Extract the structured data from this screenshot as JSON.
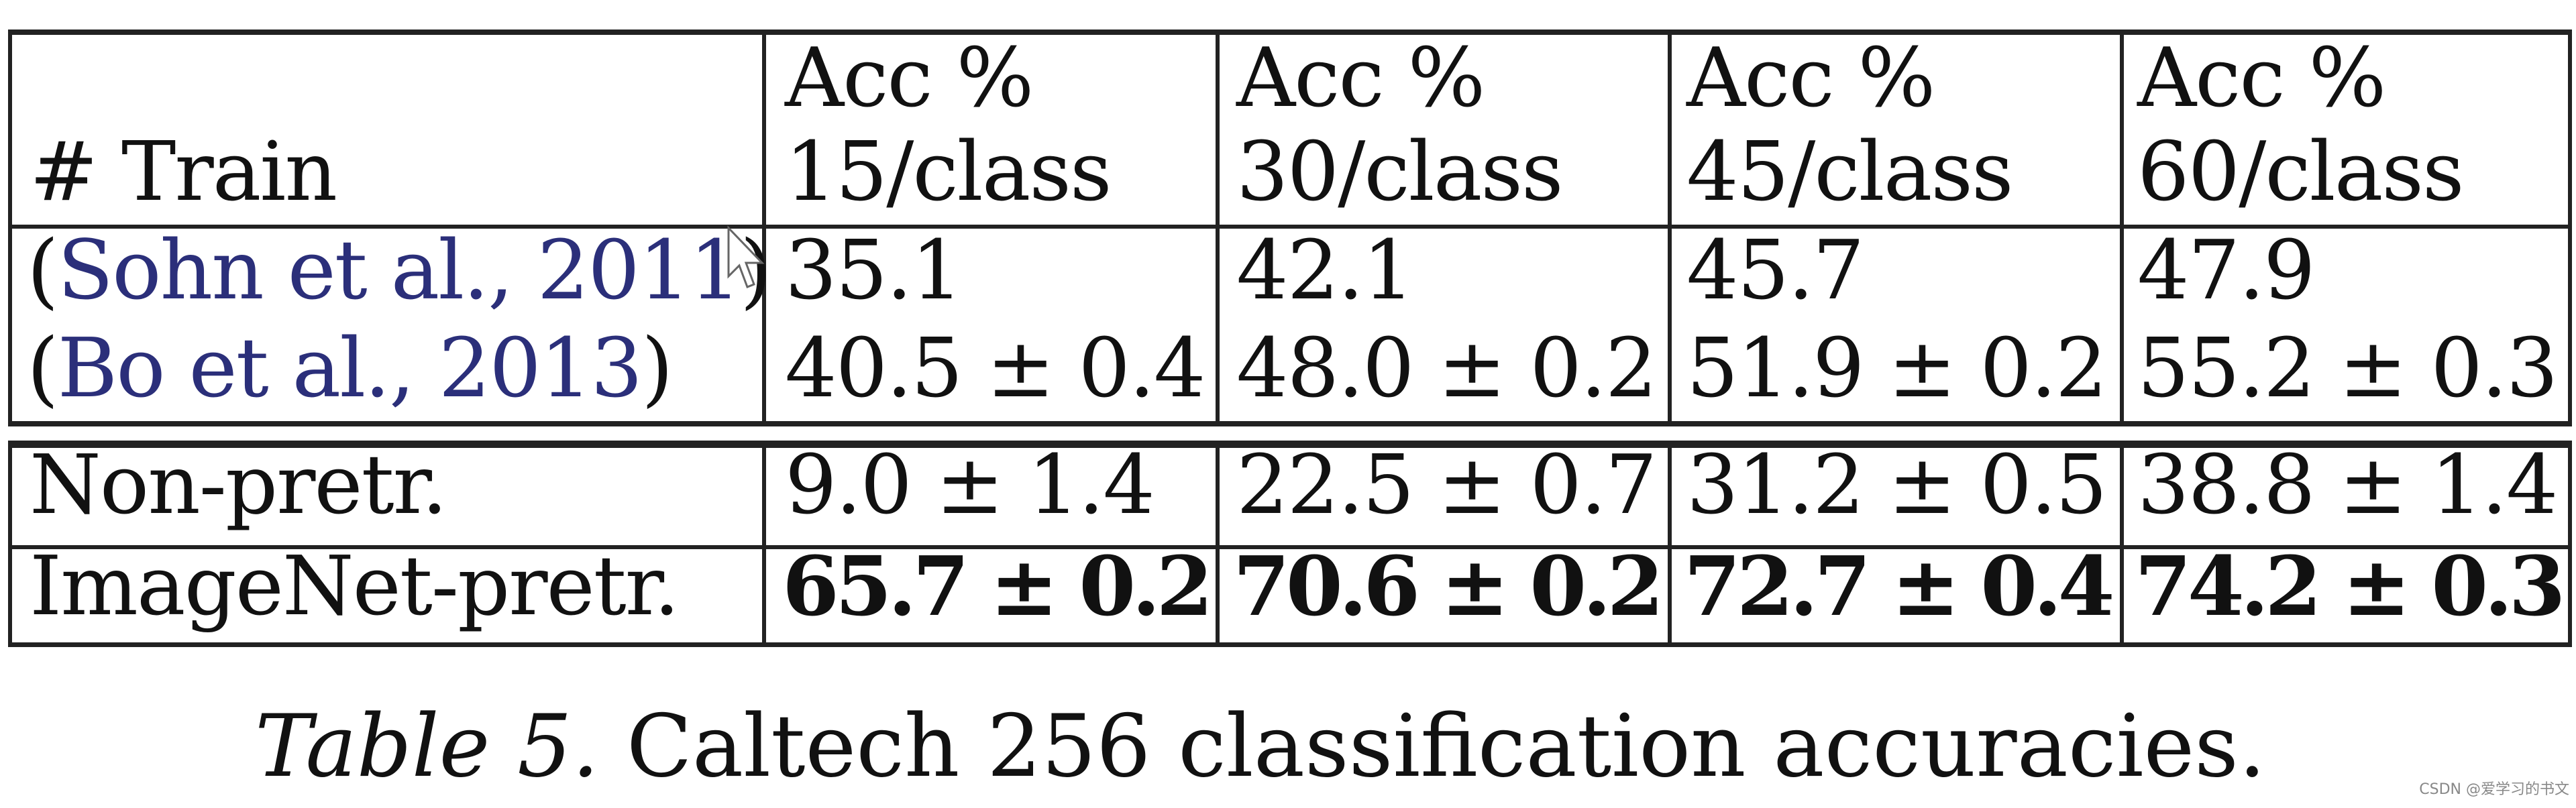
{
  "table": {
    "header": {
      "row_label": "# Train",
      "columns": [
        {
          "line1": "Acc %",
          "line2": "15/class"
        },
        {
          "line1": "Acc %",
          "line2": "30/class"
        },
        {
          "line1": "Acc %",
          "line2": "45/class"
        },
        {
          "line1": "Acc %",
          "line2": "60/class"
        }
      ]
    },
    "rows": [
      {
        "label_open": "(",
        "label": "Sohn et al., 2011",
        "label_close": ")",
        "values": [
          "35.1",
          "42.1",
          "45.7",
          "47.9"
        ],
        "bold": false
      },
      {
        "label_open": "(",
        "label": "Bo et al., 2013",
        "label_close": ")",
        "values": [
          "40.5 ± 0.4",
          "48.0 ± 0.2",
          "51.9 ± 0.2",
          "55.2 ± 0.3"
        ],
        "bold": false
      },
      {
        "label": "Non-pretr.",
        "values": [
          "9.0 ± 1.4",
          "22.5 ± 0.7",
          "31.2 ± 0.5",
          "38.8 ± 1.4"
        ],
        "bold": false
      },
      {
        "label": "ImageNet-pretr.",
        "values": [
          "65.7 ± 0.2",
          "70.6 ± 0.2",
          "72.7 ± 0.4",
          "74.2 ± 0.3"
        ],
        "bold": true
      }
    ],
    "citation_color": "#2b2f7a"
  },
  "caption": {
    "label": "Table 5.",
    "text": "Caltech 256 classification accuracies."
  },
  "watermark": "CSDN @爱学习的书文",
  "cursor_icon": "mouse-pointer-icon"
}
